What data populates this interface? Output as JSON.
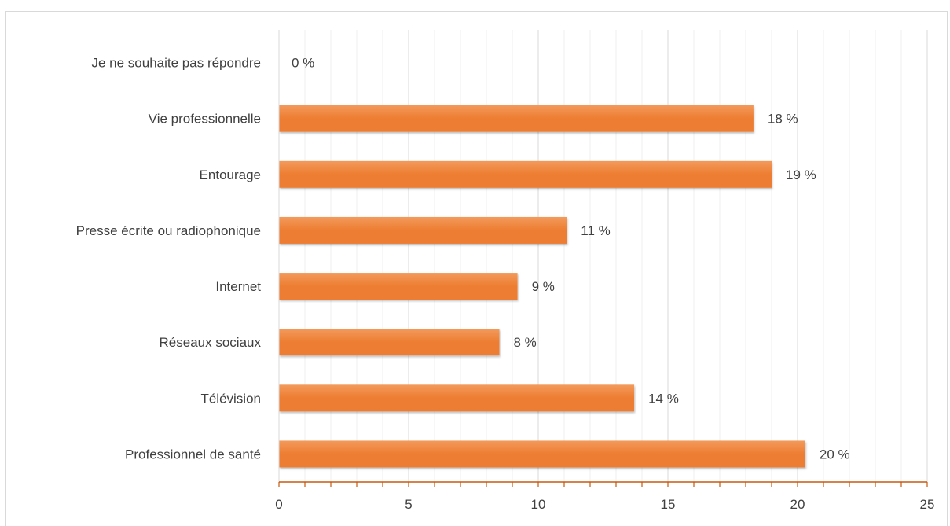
{
  "chart_data": {
    "type": "bar",
    "orientation": "horizontal",
    "categories": [
      "Je ne souhaite pas répondre",
      "Vie professionnelle",
      "Entourage",
      "Presse écrite ou radiophonique",
      "Internet",
      "Réseaux sociaux",
      "Télévision",
      "Professionnel de santé"
    ],
    "values": [
      0,
      18.3,
      19,
      11.1,
      9.2,
      8.5,
      13.7,
      20.3
    ],
    "data_labels": [
      "0 %",
      "18 %",
      "19 %",
      "11 %",
      "9 %",
      "8 %",
      "14 %",
      "20 %"
    ],
    "xlim": [
      0,
      25
    ],
    "x_ticks": [
      0,
      5,
      10,
      15,
      20,
      25
    ],
    "x_tick_labels": [
      "0",
      "5",
      "10",
      "15",
      "20",
      "25"
    ],
    "minor_tick_step": 1,
    "grid": true,
    "legend": false,
    "title": "",
    "xlabel": "",
    "ylabel": ""
  },
  "colors": {
    "bar": "#ed7d31",
    "bar_light": "#f29a5c",
    "axis": "#c55a11",
    "major_grid": "#d9d9d9",
    "minor_grid": "#efefef",
    "text": "#404040"
  }
}
